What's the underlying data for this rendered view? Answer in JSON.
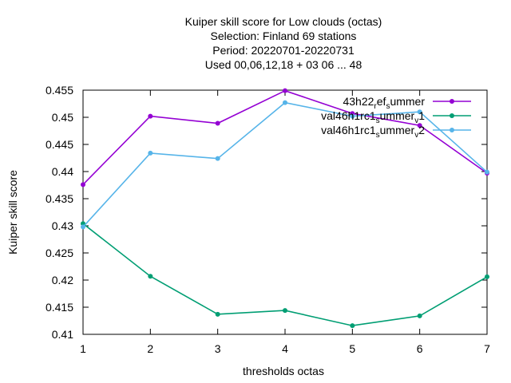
{
  "chart_data": {
    "type": "line",
    "title_lines": [
      "Kuiper skill score  for Low clouds (octas)",
      "Selection: Finland     69 stations",
      "Period: 20220701-20220731",
      "Used  00,06,12,18  + 03 06 ... 48"
    ],
    "xlabel": "thresholds octas",
    "ylabel": "Kuiper skill score",
    "x": [
      1,
      2,
      3,
      4,
      5,
      6,
      7
    ],
    "xlim": [
      1,
      7
    ],
    "ylim": [
      0.41,
      0.455
    ],
    "yticks": [
      "0.41",
      "0.415",
      "0.42",
      "0.425",
      "0.43",
      "0.435",
      "0.44",
      "0.445",
      "0.45",
      "0.455"
    ],
    "xticks": [
      "1",
      "2",
      "3",
      "4",
      "5",
      "6",
      "7"
    ],
    "grid": false,
    "legend_position": "top-right",
    "series": [
      {
        "legend_parts": [
          [
            "43h22",
            ""
          ],
          [
            "r",
            "sub"
          ],
          [
            "ef",
            ""
          ],
          [
            "s",
            "sub"
          ],
          [
            "ummer",
            ""
          ]
        ],
        "color": "#9400d3",
        "values": [
          0.4376,
          0.4502,
          0.4489,
          0.4549,
          0.4507,
          0.4485,
          0.4397
        ]
      },
      {
        "legend_parts": [
          [
            "val46h1rc1",
            ""
          ],
          [
            "s",
            "sub"
          ],
          [
            "ummer",
            ""
          ],
          [
            "v",
            "sub"
          ],
          [
            "1",
            ""
          ]
        ],
        "color": "#009e73",
        "values": [
          0.4304,
          0.4207,
          0.4137,
          0.4144,
          0.4116,
          0.4134,
          0.4206
        ]
      },
      {
        "legend_parts": [
          [
            "val46h1rc1",
            ""
          ],
          [
            "s",
            "sub"
          ],
          [
            "ummer",
            ""
          ],
          [
            "v",
            "sub"
          ],
          [
            "2",
            ""
          ]
        ],
        "color": "#56b4e9",
        "values": [
          0.4298,
          0.4434,
          0.4424,
          0.4527,
          0.4502,
          0.451,
          0.4399
        ]
      }
    ]
  }
}
